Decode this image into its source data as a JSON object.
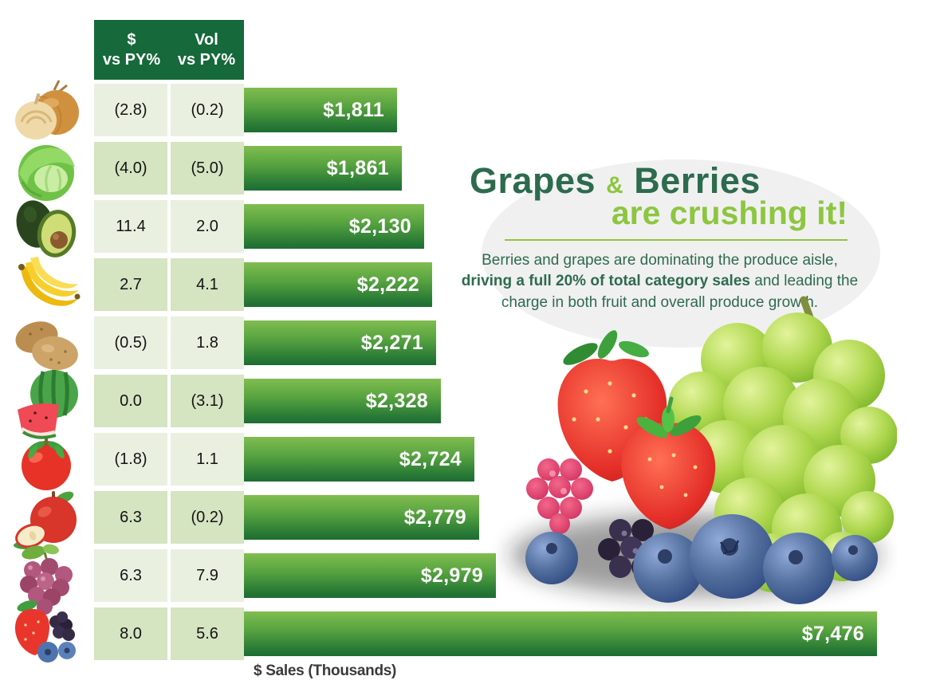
{
  "headline": {
    "word1": "Grapes",
    "ampersand": "&",
    "word2": "Berries",
    "line2": "are crushing it!"
  },
  "description": {
    "lead": "Berries and grapes are dominating the produce aisle, ",
    "bold": "driving a full 20% of total category sales",
    "tail": " and leading the charge in both fruit and overall produce growth."
  },
  "axis": {
    "xlabel": "$ Sales (Thousands)"
  },
  "table": {
    "headers": [
      "$\nvs PY%",
      "Vol\nvs PY%"
    ],
    "rows": [
      {
        "icon": "onion-icon",
        "dollar_vs_py": "(2.8)",
        "vol_vs_py": "(0.2)",
        "sales_label": "$1,811"
      },
      {
        "icon": "lettuce-icon",
        "dollar_vs_py": "(4.0)",
        "vol_vs_py": "(5.0)",
        "sales_label": "$1,861"
      },
      {
        "icon": "avocado-icon",
        "dollar_vs_py": "11.4",
        "vol_vs_py": "2.0",
        "sales_label": "$2,130"
      },
      {
        "icon": "bananas-icon",
        "dollar_vs_py": "2.7",
        "vol_vs_py": "4.1",
        "sales_label": "$2,222"
      },
      {
        "icon": "potatoes-icon",
        "dollar_vs_py": "(0.5)",
        "vol_vs_py": "1.8",
        "sales_label": "$2,271"
      },
      {
        "icon": "watermelon-icon",
        "dollar_vs_py": "0.0",
        "vol_vs_py": "(3.1)",
        "sales_label": "$2,328"
      },
      {
        "icon": "tomato-icon",
        "dollar_vs_py": "(1.8)",
        "vol_vs_py": "1.1",
        "sales_label": "$2,724"
      },
      {
        "icon": "apple-icon",
        "dollar_vs_py": "6.3",
        "vol_vs_py": "(0.2)",
        "sales_label": "$2,779"
      },
      {
        "icon": "grapes-icon",
        "dollar_vs_py": "6.3",
        "vol_vs_py": "7.9",
        "sales_label": "$2,979"
      },
      {
        "icon": "berries-icon",
        "dollar_vs_py": "8.0",
        "vol_vs_py": "5.6",
        "sales_label": "$7,476"
      }
    ]
  },
  "chart_data": {
    "type": "bar",
    "orientation": "horizontal",
    "title": "Grapes & Berries are crushing it!",
    "xlabel": "$ Sales (Thousands)",
    "xlim": [
      0,
      7476
    ],
    "grid": false,
    "legend": false,
    "categories": [
      "onion",
      "lettuce",
      "avocado",
      "bananas",
      "potatoes",
      "watermelon",
      "tomato",
      "apple",
      "grapes",
      "berries"
    ],
    "values": [
      1811,
      1861,
      2130,
      2222,
      2271,
      2328,
      2724,
      2779,
      2979,
      7476
    ],
    "bar_labels": [
      "$1,811",
      "$1,861",
      "$2,130",
      "$2,222",
      "$2,271",
      "$2,328",
      "$2,724",
      "$2,779",
      "$2,979",
      "$7,476"
    ],
    "series": [
      {
        "name": "$ vs PY%",
        "values": [
          -2.8,
          -4.0,
          11.4,
          2.7,
          -0.5,
          0.0,
          -1.8,
          6.3,
          6.3,
          8.0
        ]
      },
      {
        "name": "Vol vs PY%",
        "values": [
          -0.2,
          -5.0,
          2.0,
          4.1,
          1.8,
          -3.1,
          1.1,
          -0.2,
          7.9,
          5.6
        ]
      }
    ]
  },
  "colors": {
    "header_bg": "#16693a",
    "row_light": "#e9f0e0",
    "row_dark": "#d5e4c1",
    "bar_top": "#80bd50",
    "bar_bottom": "#1d6c33",
    "title_dark": "#2c6b4d",
    "title_light": "#8dc63f",
    "ellipse_bg": "#f0f0f1"
  }
}
